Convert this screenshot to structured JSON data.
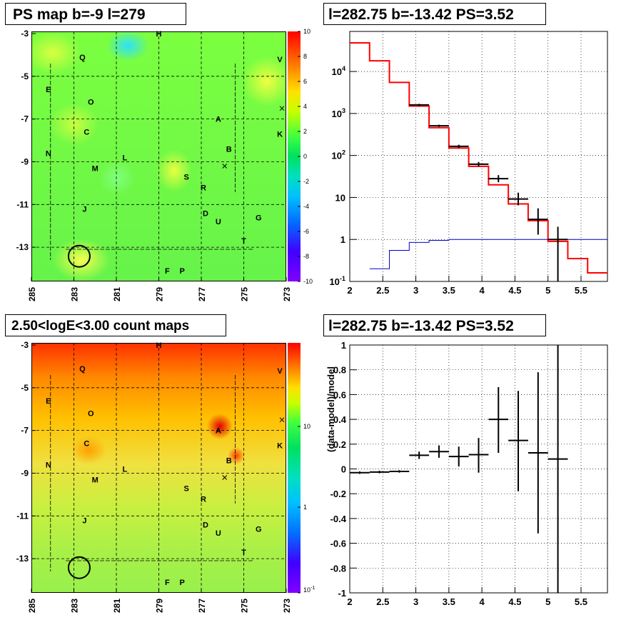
{
  "panels": {
    "ps_map": {
      "title": "PS map b=-9 l=279"
    },
    "spectrum": {
      "title": "l=282.75 b=-13.42 PS=3.52"
    },
    "count_map": {
      "title": "2.50<logE<3.00 count maps"
    },
    "residual": {
      "title": "l=282.75 b=-13.42 PS=3.52"
    }
  },
  "colors": {
    "data": "#000000",
    "model": "#ff0000",
    "component": "#0000cc",
    "grid": "#000000"
  },
  "chart_data": [
    {
      "type": "heatmap",
      "panel": "ps_map",
      "x_ticks": [
        "285",
        "283",
        "281",
        "279",
        "277",
        "275",
        "273"
      ],
      "y_ticks": [
        "-3",
        "-5",
        "-7",
        "-9",
        "-11",
        "-13"
      ],
      "colorbar_ticks": [
        "10",
        "8",
        "6",
        "4",
        "2",
        "0",
        "-2",
        "-4",
        "-6",
        "-8",
        "-10"
      ],
      "zlim": [
        -10,
        10
      ],
      "sources": [
        "H",
        "Q",
        "V",
        "E",
        "O",
        "A",
        "C",
        "K",
        "N",
        "L",
        "B",
        "M",
        "S",
        "R",
        "J",
        "D",
        "U",
        "G",
        "T",
        "F",
        "P"
      ]
    },
    {
      "type": "line",
      "panel": "spectrum",
      "x_ticks": [
        "2",
        "2.5",
        "3",
        "3.5",
        "4",
        "4.5",
        "5",
        "5.5"
      ],
      "y_ticks": [
        "10^{-1}",
        "1",
        "10",
        "10^{2}",
        "10^{3}",
        "10^{4}"
      ],
      "xlim": [
        2,
        5.9
      ],
      "ylim": [
        0.1,
        90000
      ],
      "log_y": true,
      "grid": true,
      "series": [
        {
          "bins": [
            [
              2,
              2.3
            ],
            [
              2.3,
              2.6
            ],
            [
              2.6,
              2.9
            ],
            [
              2.9,
              3.2
            ],
            [
              3.2,
              3.5
            ],
            [
              3.5,
              3.8
            ],
            [
              3.8,
              4.1
            ],
            [
              4.1,
              4.4
            ],
            [
              4.4,
              4.7
            ],
            [
              4.7,
              5.0
            ],
            [
              5.0,
              5.3
            ],
            [
              5.3,
              5.6
            ],
            [
              5.6,
              5.9
            ]
          ],
          "values": [
            48000,
            18000,
            5500,
            1500,
            460,
            150,
            55,
            20,
            7,
            2.8,
            0.9,
            0.35,
            0.16
          ]
        },
        {
          "bins": [
            [
              2.3,
              2.6
            ],
            [
              2.6,
              2.9
            ],
            [
              2.9,
              3.2
            ],
            [
              3.2,
              3.5
            ],
            [
              3.5,
              3.8
            ],
            [
              3.8,
              4.1
            ],
            [
              4.1,
              4.4
            ],
            [
              4.4,
              4.7
            ],
            [
              4.7,
              5.0
            ],
            [
              5.0,
              5.3
            ],
            [
              5.3,
              5.9
            ]
          ],
          "values": [
            0.2,
            0.55,
            0.85,
            0.95,
            1.0,
            1.0,
            1.0,
            1.0,
            1.0,
            1.0,
            1.0
          ]
        },
        {
          "points": [
            [
              3.05,
              1600,
              2.9,
              3.2,
              1500,
              1700
            ],
            [
              3.35,
              510,
              3.2,
              3.5,
              480,
              540
            ],
            [
              3.65,
              165,
              3.5,
              3.8,
              150,
              180
            ],
            [
              3.95,
              62,
              3.8,
              4.1,
              55,
              70
            ],
            [
              4.25,
              28,
              4.1,
              4.4,
              23,
              34
            ],
            [
              4.55,
              9.2,
              4.4,
              4.7,
              6.5,
              13
            ],
            [
              4.85,
              3,
              4.7,
              5.0,
              1.3,
              5.5
            ],
            [
              5.15,
              1,
              5.0,
              5.3,
              0.1,
              2
            ]
          ]
        }
      ]
    },
    {
      "type": "heatmap",
      "panel": "count_map",
      "x_ticks": [
        "285",
        "283",
        "281",
        "279",
        "277",
        "275",
        "273"
      ],
      "y_ticks": [
        "-3",
        "-5",
        "-7",
        "-9",
        "-11",
        "-13"
      ],
      "colorbar_ticks": [
        "10",
        "1",
        "10^{-1}"
      ],
      "log_z": true,
      "sources": [
        "H",
        "Q",
        "V",
        "E",
        "O",
        "A",
        "C",
        "K",
        "N",
        "L",
        "B",
        "M",
        "S",
        "R",
        "J",
        "D",
        "U",
        "G",
        "T",
        "F",
        "P"
      ]
    },
    {
      "type": "scatter",
      "panel": "residual",
      "ylabel": "(data-model)/model",
      "x_ticks": [
        "2",
        "2.5",
        "3",
        "3.5",
        "4",
        "4.5",
        "5",
        "5.5"
      ],
      "y_ticks": [
        "1",
        "0.8",
        "0.6",
        "0.4",
        "0.2",
        "0",
        "-0.2",
        "-0.4",
        "-0.6",
        "-0.8",
        "-1"
      ],
      "xlim": [
        2,
        5.9
      ],
      "ylim": [
        -1,
        1
      ],
      "grid": true,
      "points": [
        {
          "x": 2.15,
          "y": -0.03,
          "xlo": 2.0,
          "xhi": 2.3,
          "ylo": -0.04,
          "yhi": -0.02
        },
        {
          "x": 2.45,
          "y": -0.025,
          "xlo": 2.3,
          "xhi": 2.6,
          "ylo": -0.035,
          "yhi": -0.015
        },
        {
          "x": 2.75,
          "y": -0.02,
          "xlo": 2.6,
          "xhi": 2.9,
          "ylo": -0.03,
          "yhi": -0.01
        },
        {
          "x": 3.05,
          "y": 0.11,
          "xlo": 2.9,
          "xhi": 3.2,
          "ylo": 0.08,
          "yhi": 0.14
        },
        {
          "x": 3.35,
          "y": 0.14,
          "xlo": 3.2,
          "xhi": 3.5,
          "ylo": 0.09,
          "yhi": 0.19
        },
        {
          "x": 3.65,
          "y": 0.1,
          "xlo": 3.5,
          "xhi": 3.8,
          "ylo": 0.02,
          "yhi": 0.18
        },
        {
          "x": 3.95,
          "y": 0.115,
          "xlo": 3.8,
          "xhi": 4.1,
          "ylo": -0.03,
          "yhi": 0.25
        },
        {
          "x": 4.25,
          "y": 0.4,
          "xlo": 4.1,
          "xhi": 4.4,
          "ylo": 0.13,
          "yhi": 0.66
        },
        {
          "x": 4.55,
          "y": 0.23,
          "xlo": 4.4,
          "xhi": 4.7,
          "ylo": -0.18,
          "yhi": 0.63
        },
        {
          "x": 4.85,
          "y": 0.13,
          "xlo": 4.7,
          "xhi": 5.0,
          "ylo": -0.52,
          "yhi": 0.78
        },
        {
          "x": 5.15,
          "y": 0.08,
          "xlo": 5.0,
          "xhi": 5.3,
          "ylo": -1,
          "yhi": 1
        }
      ]
    }
  ]
}
